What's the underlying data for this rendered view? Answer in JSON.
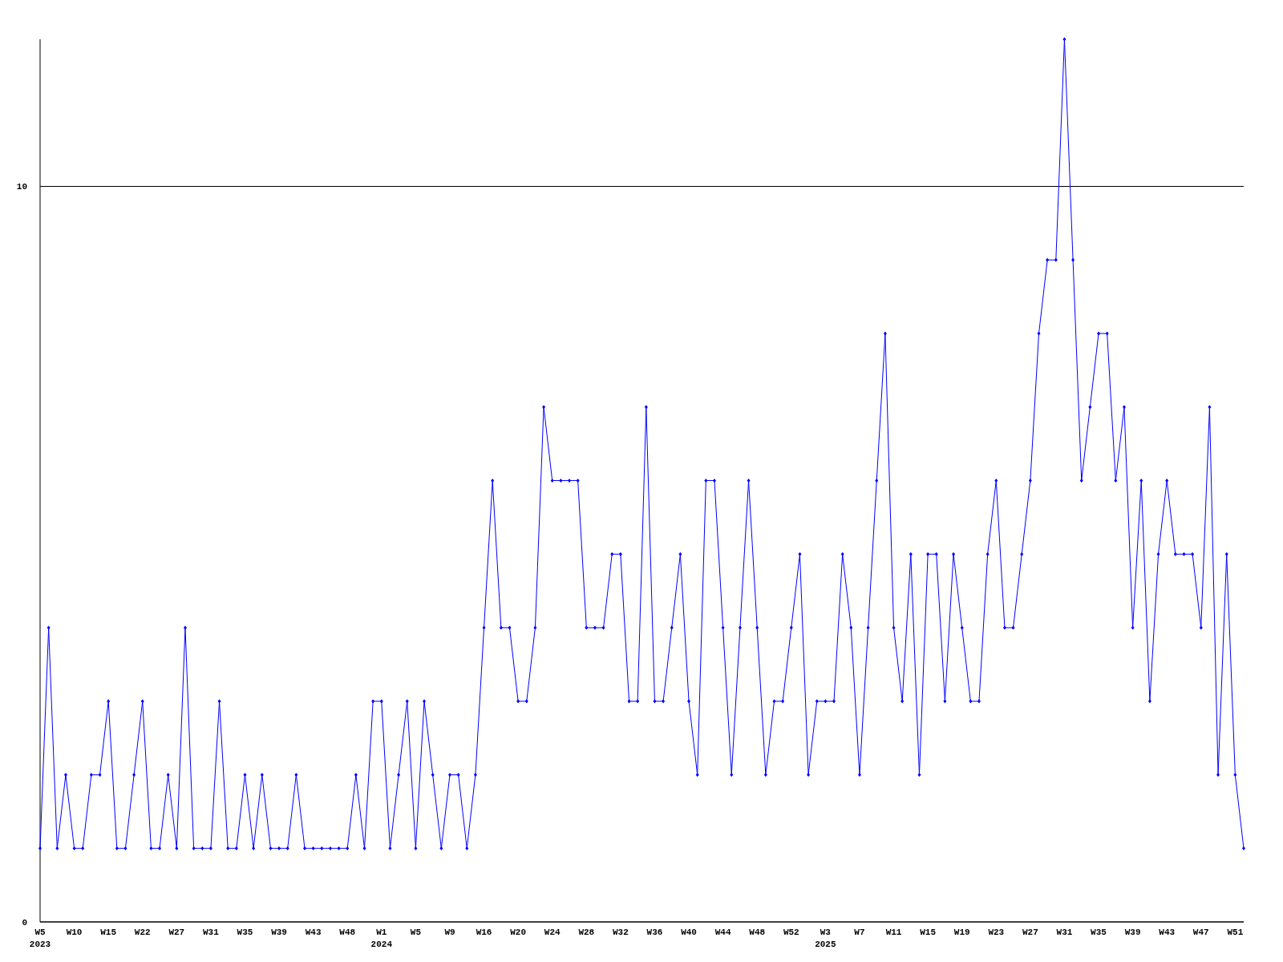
{
  "chart_data": {
    "type": "line",
    "categories": [
      "W5\n2023",
      null,
      null,
      null,
      "W10",
      null,
      null,
      null,
      "W15",
      null,
      null,
      null,
      "W22",
      null,
      null,
      null,
      "W27",
      null,
      null,
      null,
      "W31",
      null,
      null,
      null,
      "W35",
      null,
      null,
      null,
      "W39",
      null,
      null,
      null,
      "W43",
      null,
      null,
      null,
      "W48",
      null,
      null,
      null,
      "W1\n2024",
      null,
      null,
      null,
      "W5",
      null,
      null,
      null,
      "W9",
      null,
      null,
      null,
      "W16",
      null,
      null,
      null,
      "W20",
      null,
      null,
      null,
      "W24",
      null,
      null,
      null,
      "W28",
      null,
      null,
      null,
      "W32",
      null,
      null,
      null,
      "W36",
      null,
      null,
      null,
      "W40",
      null,
      null,
      null,
      "W44",
      null,
      null,
      null,
      "W48",
      null,
      null,
      null,
      "W52",
      null,
      null,
      null,
      "W3\n2025",
      null,
      null,
      null,
      "W7",
      null,
      null,
      null,
      "W11",
      null,
      null,
      null,
      "W15",
      null,
      null,
      null,
      "W19",
      null,
      null,
      null,
      "W23",
      null,
      null,
      null,
      "W27",
      null,
      null,
      null,
      "W31",
      null,
      null,
      null,
      "W35",
      null,
      null,
      null,
      "W39",
      null,
      null,
      null,
      "W43",
      null,
      null,
      null,
      "W47",
      null,
      null,
      null,
      "W51",
      null
    ],
    "series": [
      {
        "color": "#0000ff",
        "values": [
          1,
          4,
          1,
          2,
          1,
          1,
          2,
          2,
          3,
          1,
          1,
          2,
          3,
          1,
          1,
          2,
          1,
          4,
          1,
          1,
          1,
          3,
          1,
          1,
          2,
          1,
          2,
          1,
          1,
          1,
          2,
          1,
          1,
          1,
          1,
          1,
          1,
          2,
          1,
          3,
          3,
          1,
          2,
          3,
          1,
          3,
          2,
          1,
          2,
          2,
          1,
          2,
          4,
          6,
          4,
          4,
          3,
          3,
          4,
          7,
          6,
          6,
          6,
          6,
          4,
          4,
          4,
          5,
          5,
          3,
          3,
          7,
          3,
          3,
          4,
          5,
          3,
          2,
          6,
          6,
          4,
          2,
          4,
          6,
          4,
          2,
          3,
          3,
          4,
          5,
          2,
          3,
          3,
          3,
          5,
          4,
          2,
          4,
          6,
          8,
          4,
          3,
          5,
          2,
          5,
          5,
          3,
          5,
          4,
          3,
          3,
          5,
          6,
          4,
          4,
          5,
          6,
          8,
          9,
          9,
          12,
          9,
          6,
          7,
          8,
          8,
          6,
          7,
          4,
          6,
          3,
          5,
          6,
          5,
          5,
          5,
          4,
          7,
          2,
          5,
          2,
          1
        ]
      }
    ],
    "ylim": [
      0,
      12
    ],
    "yticks": [
      0,
      10
    ],
    "grid": "y",
    "marker": "diamond",
    "line_style": "solid"
  }
}
